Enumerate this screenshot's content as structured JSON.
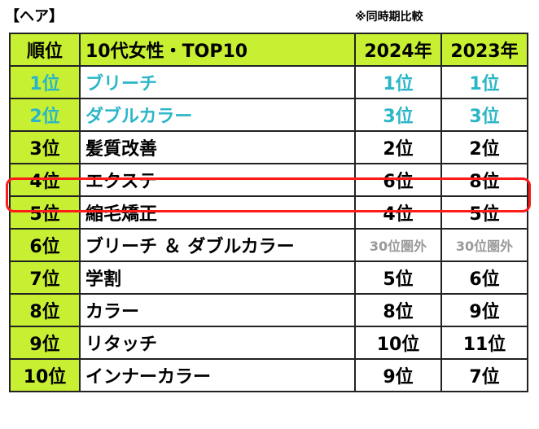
{
  "caption": "【ヘア】",
  "note": "※同時期比較",
  "header": {
    "rank": "順位",
    "category": "10代女性・TOP10",
    "y2024": "2024年",
    "y2023": "2023年"
  },
  "rows": [
    {
      "rank": "1位",
      "name": "ブリーチ",
      "y2024": "1位",
      "y2023": "1位",
      "highlight": true
    },
    {
      "rank": "2位",
      "name": "ダブルカラー",
      "y2024": "3位",
      "y2023": "3位",
      "highlight": true
    },
    {
      "rank": "3位",
      "name": "髪質改善",
      "y2024": "2位",
      "y2023": "2位"
    },
    {
      "rank": "4位",
      "name": "エクステ",
      "y2024": "6位",
      "y2023": "8位",
      "boxed": true
    },
    {
      "rank": "5位",
      "name": "縮毛矯正",
      "y2024": "4位",
      "y2023": "5位"
    },
    {
      "rank": "6位",
      "name": "ブリーチ ＆ ダブルカラー",
      "y2024": "30位圏外",
      "y2023": "30位圏外",
      "out": true
    },
    {
      "rank": "7位",
      "name": "学割",
      "y2024": "5位",
      "y2023": "6位"
    },
    {
      "rank": "8位",
      "name": "カラー",
      "y2024": "8位",
      "y2023": "9位"
    },
    {
      "rank": "9位",
      "name": "リタッチ",
      "y2024": "10位",
      "y2023": "11位"
    },
    {
      "rank": "10位",
      "name": "インナーカラー",
      "y2024": "9位",
      "y2023": "7位"
    }
  ],
  "colors": {
    "header_bg": "#c8f032",
    "highlight_text": "#2bb6c7",
    "box": "#ff1a1a",
    "out_text": "#9a9a9a"
  }
}
